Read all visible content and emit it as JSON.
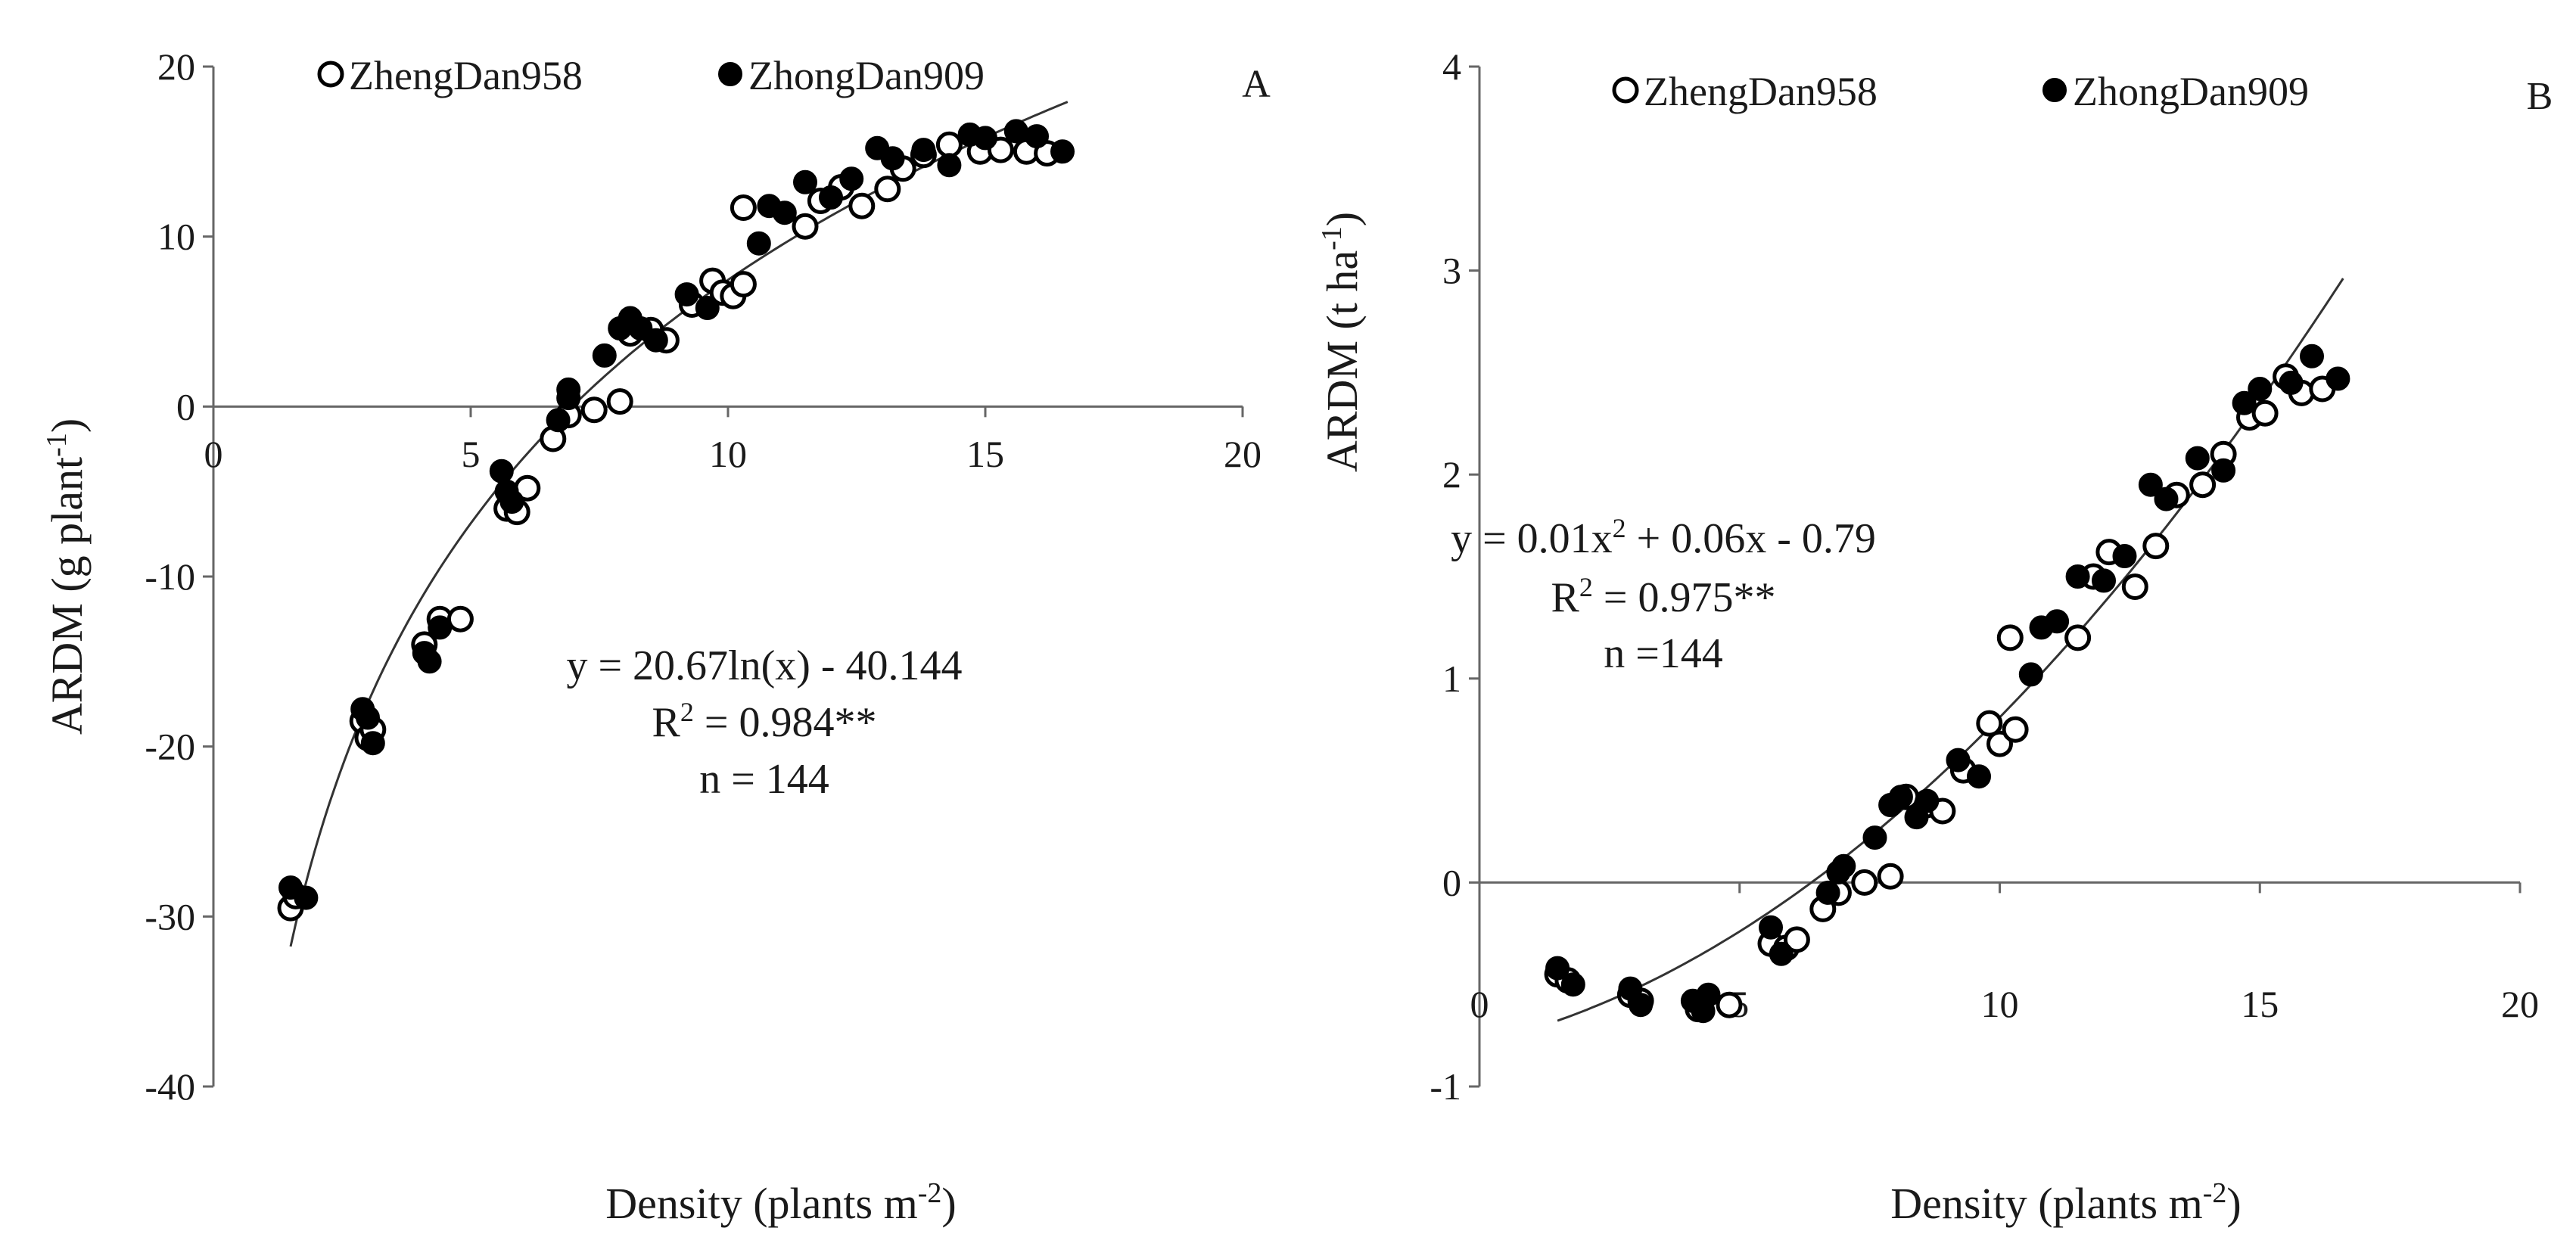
{
  "chart_data": [
    {
      "panel_label": "A",
      "type": "scatter",
      "xlabel_main": "Density (plants m",
      "xlabel_sup": "-2",
      "xlabel_end": ")",
      "ylabel_main": "ARDM (g plant",
      "ylabel_sup": "-1",
      "ylabel_end": ")",
      "xlim": [
        0,
        20
      ],
      "ylim": [
        -40,
        20
      ],
      "xticks": [
        0,
        5,
        10,
        15,
        20
      ],
      "yticks": [
        -40,
        -30,
        -20,
        -10,
        0,
        10,
        20
      ],
      "legend": [
        "ZhengDan958",
        "ZhongDan909"
      ],
      "fit": {
        "form": "log",
        "a": 20.67,
        "b": -40.144,
        "x_range": [
          1.5,
          16.6
        ]
      },
      "equation": {
        "line1": "y = 20.67ln(x) - 40.144",
        "r2_pre": "R",
        "r2_sup": "2",
        "r2_post": " = 0.984**",
        "n": "n = 144"
      },
      "series": [
        {
          "name": "ZhengDan958",
          "marker": "open",
          "points": [
            [
              1.5,
              -29.5
            ],
            [
              1.6,
              -28.8
            ],
            [
              2.9,
              -18.5
            ],
            [
              3.0,
              -19.5
            ],
            [
              3.1,
              -19.0
            ],
            [
              4.1,
              -14.0
            ],
            [
              4.4,
              -12.5
            ],
            [
              4.8,
              -12.5
            ],
            [
              5.7,
              -6.0
            ],
            [
              5.9,
              -6.2
            ],
            [
              6.1,
              -4.8
            ],
            [
              6.6,
              -1.9
            ],
            [
              6.9,
              -0.5
            ],
            [
              7.4,
              -0.2
            ],
            [
              7.9,
              0.3
            ],
            [
              8.1,
              4.3
            ],
            [
              8.5,
              4.5
            ],
            [
              8.8,
              3.9
            ],
            [
              9.3,
              6.0
            ],
            [
              9.7,
              7.4
            ],
            [
              9.9,
              6.7
            ],
            [
              10.1,
              6.5
            ],
            [
              10.3,
              7.2
            ],
            [
              10.3,
              11.7
            ],
            [
              11.5,
              10.6
            ],
            [
              11.8,
              12.1
            ],
            [
              12.2,
              12.9
            ],
            [
              12.6,
              11.8
            ],
            [
              13.1,
              12.8
            ],
            [
              13.4,
              14.0
            ],
            [
              13.8,
              14.8
            ],
            [
              14.3,
              15.4
            ],
            [
              14.9,
              15.0
            ],
            [
              15.3,
              15.1
            ],
            [
              15.8,
              15.0
            ],
            [
              16.2,
              14.9
            ]
          ]
        },
        {
          "name": "ZhongDan909",
          "marker": "filled",
          "points": [
            [
              1.5,
              -28.3
            ],
            [
              1.8,
              -28.9
            ],
            [
              2.9,
              -17.8
            ],
            [
              3.0,
              -18.3
            ],
            [
              3.1,
              -19.8
            ],
            [
              4.1,
              -14.5
            ],
            [
              4.2,
              -15.0
            ],
            [
              4.4,
              -13.0
            ],
            [
              5.6,
              -3.8
            ],
            [
              5.7,
              -5.0
            ],
            [
              5.8,
              -5.6
            ],
            [
              6.7,
              -0.8
            ],
            [
              6.9,
              0.5
            ],
            [
              6.9,
              1.0
            ],
            [
              7.6,
              3.0
            ],
            [
              7.9,
              4.6
            ],
            [
              8.1,
              5.2
            ],
            [
              8.3,
              4.6
            ],
            [
              8.6,
              3.9
            ],
            [
              9.2,
              6.6
            ],
            [
              9.6,
              5.8
            ],
            [
              10.6,
              9.6
            ],
            [
              10.8,
              11.8
            ],
            [
              11.1,
              11.4
            ],
            [
              11.5,
              13.2
            ],
            [
              12.0,
              12.3
            ],
            [
              12.4,
              13.4
            ],
            [
              12.9,
              15.2
            ],
            [
              13.2,
              14.6
            ],
            [
              13.8,
              15.1
            ],
            [
              14.3,
              14.2
            ],
            [
              14.7,
              16.0
            ],
            [
              15.0,
              15.8
            ],
            [
              15.6,
              16.2
            ],
            [
              16.0,
              15.9
            ],
            [
              16.5,
              15.0
            ]
          ]
        }
      ]
    },
    {
      "panel_label": "B",
      "type": "scatter",
      "xlabel_main": "Density (plants m",
      "xlabel_sup": "-2",
      "xlabel_end": ")",
      "ylabel_main": "ARDM (t ha",
      "ylabel_sup": "-1",
      "ylabel_end": ")",
      "xlim": [
        0,
        20
      ],
      "ylim": [
        -1,
        4
      ],
      "xticks": [
        0,
        5,
        10,
        15,
        20
      ],
      "yticks": [
        -1,
        0,
        1,
        2,
        3,
        4
      ],
      "legend": [
        "ZhengDan958",
        "ZhongDan909"
      ],
      "fit": {
        "form": "quadratic",
        "a": 0.01,
        "b": 0.06,
        "c": -0.79,
        "x_range": [
          1.5,
          16.6
        ]
      },
      "equation": {
        "line1_pre": "y = 0.01x",
        "line1_sup": "2",
        "line1_post": " + 0.06x - 0.79",
        "r2_pre": "R",
        "r2_sup": "2",
        "r2_post": " = 0.975**",
        "n": "n =144"
      },
      "series": [
        {
          "name": "ZhengDan958",
          "marker": "open",
          "points": [
            [
              1.5,
              -0.45
            ],
            [
              1.7,
              -0.48
            ],
            [
              2.9,
              -0.55
            ],
            [
              3.1,
              -0.58
            ],
            [
              4.2,
              -0.62
            ],
            [
              4.8,
              -0.6
            ],
            [
              5.6,
              -0.3
            ],
            [
              5.9,
              -0.32
            ],
            [
              6.1,
              -0.28
            ],
            [
              6.6,
              -0.13
            ],
            [
              6.9,
              -0.05
            ],
            [
              7.4,
              0.0
            ],
            [
              7.9,
              0.03
            ],
            [
              8.2,
              0.42
            ],
            [
              8.6,
              0.38
            ],
            [
              8.9,
              0.35
            ],
            [
              9.3,
              0.55
            ],
            [
              9.8,
              0.78
            ],
            [
              10.0,
              0.68
            ],
            [
              10.3,
              0.75
            ],
            [
              10.2,
              1.2
            ],
            [
              11.5,
              1.2
            ],
            [
              11.8,
              1.5
            ],
            [
              12.1,
              1.62
            ],
            [
              12.6,
              1.45
            ],
            [
              13.0,
              1.65
            ],
            [
              13.4,
              1.9
            ],
            [
              13.9,
              1.95
            ],
            [
              14.3,
              2.1
            ],
            [
              14.8,
              2.28
            ],
            [
              15.1,
              2.3
            ],
            [
              15.5,
              2.48
            ],
            [
              15.8,
              2.4
            ],
            [
              16.2,
              2.42
            ]
          ]
        },
        {
          "name": "ZhongDan909",
          "marker": "filled",
          "points": [
            [
              1.5,
              -0.42
            ],
            [
              1.8,
              -0.5
            ],
            [
              2.9,
              -0.52
            ],
            [
              3.1,
              -0.6
            ],
            [
              4.1,
              -0.58
            ],
            [
              4.3,
              -0.63
            ],
            [
              4.4,
              -0.55
            ],
            [
              5.6,
              -0.22
            ],
            [
              5.8,
              -0.35
            ],
            [
              6.7,
              -0.05
            ],
            [
              6.9,
              0.05
            ],
            [
              7.0,
              0.08
            ],
            [
              7.6,
              0.22
            ],
            [
              7.9,
              0.38
            ],
            [
              8.1,
              0.42
            ],
            [
              8.4,
              0.32
            ],
            [
              8.6,
              0.4
            ],
            [
              9.2,
              0.6
            ],
            [
              9.6,
              0.52
            ],
            [
              10.6,
              1.02
            ],
            [
              10.8,
              1.25
            ],
            [
              11.1,
              1.28
            ],
            [
              11.5,
              1.5
            ],
            [
              12.0,
              1.48
            ],
            [
              12.4,
              1.6
            ],
            [
              12.9,
              1.95
            ],
            [
              13.2,
              1.88
            ],
            [
              13.8,
              2.08
            ],
            [
              14.3,
              2.02
            ],
            [
              14.7,
              2.35
            ],
            [
              15.0,
              2.42
            ],
            [
              15.6,
              2.45
            ],
            [
              16.0,
              2.58
            ],
            [
              16.5,
              2.47
            ]
          ]
        }
      ]
    }
  ]
}
